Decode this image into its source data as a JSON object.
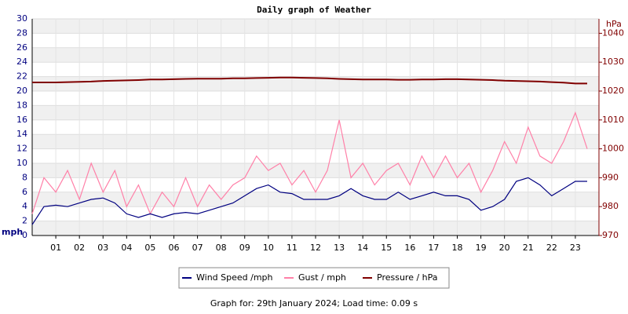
{
  "chart_data": {
    "type": "line",
    "title": "Daily graph of Weather",
    "y_label": "mph",
    "y2_label": "hPa",
    "footer": "Graph for: 29th January 2024; Load time: 0.09 s",
    "x": [
      0,
      0.5,
      1,
      1.5,
      2,
      2.5,
      3,
      3.5,
      4,
      4.5,
      5,
      5.5,
      6,
      6.5,
      7,
      7.5,
      8,
      8.5,
      9,
      9.5,
      10,
      10.5,
      11,
      11.5,
      12,
      12.5,
      13,
      13.5,
      14,
      14.5,
      15,
      15.5,
      16,
      16.5,
      17,
      17.5,
      18,
      18.5,
      19,
      19.5,
      20,
      20.5,
      21,
      21.5,
      22,
      22.5,
      23,
      23.5
    ],
    "xlim": [
      0,
      24
    ],
    "xticks": [
      {
        "value": 1,
        "label": "01"
      },
      {
        "value": 2,
        "label": "02"
      },
      {
        "value": 3,
        "label": "03"
      },
      {
        "value": 4,
        "label": "04"
      },
      {
        "value": 5,
        "label": "05"
      },
      {
        "value": 6,
        "label": "06"
      },
      {
        "value": 7,
        "label": "07"
      },
      {
        "value": 8,
        "label": "08"
      },
      {
        "value": 9,
        "label": "09"
      },
      {
        "value": 10,
        "label": "10"
      },
      {
        "value": 11,
        "label": "11"
      },
      {
        "value": 12,
        "label": "12"
      },
      {
        "value": 13,
        "label": "13"
      },
      {
        "value": 14,
        "label": "14"
      },
      {
        "value": 15,
        "label": "15"
      },
      {
        "value": 16,
        "label": "16"
      },
      {
        "value": 17,
        "label": "17"
      },
      {
        "value": 18,
        "label": "18"
      },
      {
        "value": 19,
        "label": "19"
      },
      {
        "value": 20,
        "label": "20"
      },
      {
        "value": 21,
        "label": "21"
      },
      {
        "value": 22,
        "label": "22"
      },
      {
        "value": 23,
        "label": "23"
      }
    ],
    "ylim": [
      0,
      30
    ],
    "yticks": [
      0,
      2,
      4,
      6,
      8,
      10,
      12,
      14,
      16,
      18,
      20,
      22,
      24,
      26,
      28,
      30
    ],
    "y2lim": [
      970,
      1045
    ],
    "y2ticks": [
      970,
      980,
      990,
      1000,
      1010,
      1020,
      1030,
      1040
    ],
    "grid": true,
    "series": [
      {
        "name": "Wind Speed /mph",
        "color": "#000080",
        "values": [
          1.5,
          4,
          4.2,
          4,
          4.5,
          5,
          5.2,
          4.5,
          3,
          2.5,
          3,
          2.5,
          3,
          3.2,
          3,
          3.5,
          4,
          4.5,
          5.5,
          6.5,
          7,
          6,
          5.8,
          5,
          5,
          5,
          5.5,
          6.5,
          5.5,
          5,
          5,
          6,
          5,
          5.5,
          6,
          5.5,
          5.5,
          5,
          3.5,
          4,
          5,
          7.5,
          8,
          7,
          5.5,
          6.5,
          7.5,
          7.5
        ]
      },
      {
        "name": "Gust / mph",
        "color": "#ff80a8",
        "values": [
          3,
          8,
          6,
          9,
          5,
          10,
          6,
          9,
          4,
          7,
          3,
          6,
          4,
          8,
          4,
          7,
          5,
          7,
          8,
          11,
          9,
          10,
          7,
          9,
          6,
          9,
          16,
          8,
          10,
          7,
          9,
          10,
          7,
          11,
          8,
          11,
          8,
          10,
          6,
          9,
          13,
          10,
          15,
          11,
          10,
          13,
          17,
          12
        ]
      },
      {
        "name": "Pressure / hPa",
        "color": "#800000",
        "axis": "y2",
        "values": [
          1023,
          1023,
          1023,
          1023.1,
          1023.2,
          1023.3,
          1023.5,
          1023.6,
          1023.7,
          1023.8,
          1024,
          1024,
          1024.1,
          1024.2,
          1024.3,
          1024.3,
          1024.3,
          1024.4,
          1024.4,
          1024.5,
          1024.6,
          1024.7,
          1024.7,
          1024.6,
          1024.5,
          1024.4,
          1024.2,
          1024.1,
          1024.0,
          1024.0,
          1024.0,
          1023.9,
          1023.9,
          1024.0,
          1024.0,
          1024.1,
          1024.1,
          1024.0,
          1023.9,
          1023.8,
          1023.6,
          1023.5,
          1023.4,
          1023.3,
          1023.1,
          1022.9,
          1022.6,
          1022.6
        ]
      }
    ]
  }
}
